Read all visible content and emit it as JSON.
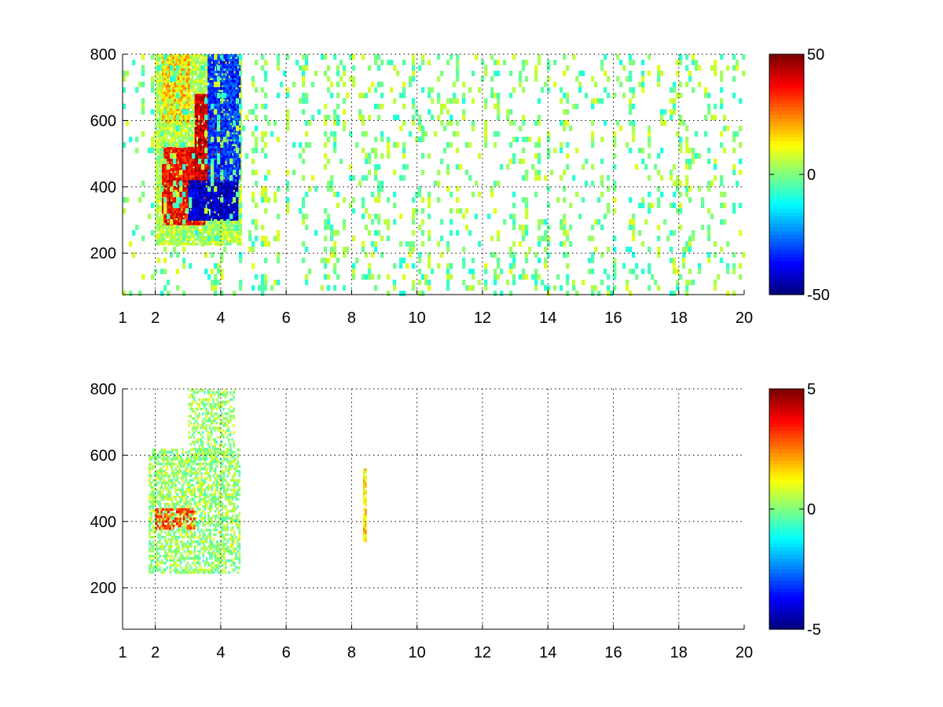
{
  "chart_data": [
    {
      "type": "heatmap",
      "title": "",
      "xlabel": "",
      "ylabel": "",
      "xlim": [
        1,
        20
      ],
      "ylim": [
        75,
        800
      ],
      "x_ticks": [
        1,
        2,
        4,
        6,
        8,
        10,
        12,
        14,
        16,
        18,
        20
      ],
      "y_ticks": [
        200,
        400,
        600,
        800
      ],
      "grid": true,
      "colormap": "jet",
      "colorbar": {
        "min": -50,
        "max": 50,
        "ticks": [
          50,
          0,
          -50
        ]
      },
      "regions": [
        {
          "x": [
            2,
            4.6
          ],
          "y": [
            230,
            800
          ],
          "level": 0.1,
          "density": 0.9,
          "kind": "background"
        },
        {
          "x": [
            2.2,
            3.5
          ],
          "y": [
            290,
            520
          ],
          "level": 0.75,
          "density": 0.95,
          "kind": "warm-band"
        },
        {
          "x": [
            3.2,
            4.0
          ],
          "y": [
            420,
            680
          ],
          "level": 0.85,
          "density": 0.9,
          "kind": "warm-band"
        },
        {
          "x": [
            3.0,
            4.5
          ],
          "y": [
            300,
            420
          ],
          "level": -0.85,
          "density": 0.95,
          "kind": "cold-band"
        },
        {
          "x": [
            3.6,
            4.6
          ],
          "y": [
            420,
            800
          ],
          "level": -0.65,
          "density": 0.9,
          "kind": "cold-band"
        },
        {
          "x": [
            2.2,
            3.0
          ],
          "y": [
            600,
            800
          ],
          "level": 0.35,
          "density": 0.7,
          "kind": "upper-patch"
        },
        {
          "x": [
            1,
            20
          ],
          "y": [
            75,
            800
          ],
          "level": 0.0,
          "density": 0.28,
          "kind": "noise"
        }
      ]
    },
    {
      "type": "heatmap",
      "title": "",
      "xlabel": "",
      "ylabel": "",
      "xlim": [
        1,
        20
      ],
      "ylim": [
        75,
        800
      ],
      "x_ticks": [
        1,
        2,
        4,
        6,
        8,
        10,
        12,
        14,
        16,
        18,
        20
      ],
      "y_ticks": [
        200,
        400,
        600,
        800
      ],
      "grid": true,
      "colormap": "jet",
      "colorbar": {
        "min": -5,
        "max": 5,
        "ticks": [
          5,
          0,
          -5
        ]
      },
      "regions": [
        {
          "x": [
            1.8,
            4.6
          ],
          "y": [
            250,
            620
          ],
          "level": 0.05,
          "density": 0.55,
          "kind": "main"
        },
        {
          "x": [
            3.0,
            4.4
          ],
          "y": [
            600,
            800
          ],
          "level": 0.05,
          "density": 0.45,
          "kind": "upper"
        },
        {
          "x": [
            2.0,
            3.2
          ],
          "y": [
            380,
            440
          ],
          "level": 0.6,
          "density": 0.6,
          "kind": "warm-streak"
        },
        {
          "x": [
            8.35,
            8.45
          ],
          "y": [
            340,
            560
          ],
          "level": 0.3,
          "density": 0.9,
          "kind": "column"
        }
      ]
    }
  ]
}
